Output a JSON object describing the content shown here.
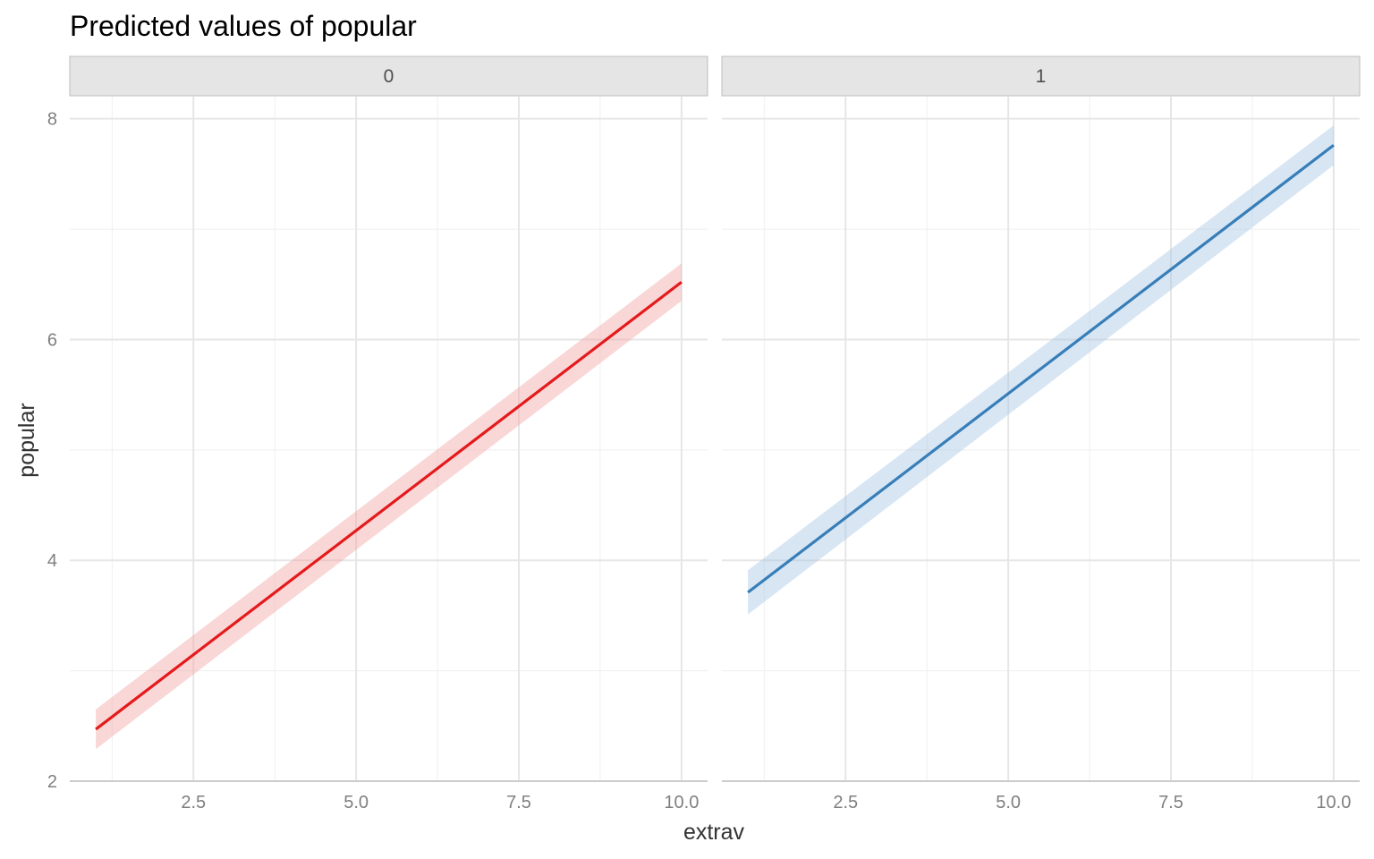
{
  "chart_data": {
    "type": "line",
    "title": "Predicted values of popular",
    "xlabel": "extrav",
    "ylabel": "popular",
    "xlim": [
      0.6,
      10.4
    ],
    "ylim": [
      2.0,
      8.2
    ],
    "x_ticks": [
      2.5,
      5.0,
      7.5,
      10.0
    ],
    "x_tick_labels": [
      "2.5",
      "5.0",
      "7.5",
      "10.0"
    ],
    "y_ticks": [
      2,
      4,
      6,
      8
    ],
    "y_tick_labels": [
      "2",
      "4",
      "6",
      "8"
    ],
    "grid": true,
    "facets": [
      {
        "label": "0",
        "color": "#e41a1c",
        "ribbon_color": "#f4a6a7",
        "x": [
          1,
          10
        ],
        "y": [
          2.47,
          6.52
        ],
        "ci_low": [
          2.29,
          6.35
        ],
        "ci_high": [
          2.65,
          6.69
        ]
      },
      {
        "label": "1",
        "color": "#377eb8",
        "ribbon_color": "#a9c8e6",
        "x": [
          1,
          10
        ],
        "y": [
          3.71,
          7.76
        ],
        "ci_low": [
          3.51,
          7.58
        ],
        "ci_high": [
          3.91,
          7.94
        ]
      }
    ]
  }
}
